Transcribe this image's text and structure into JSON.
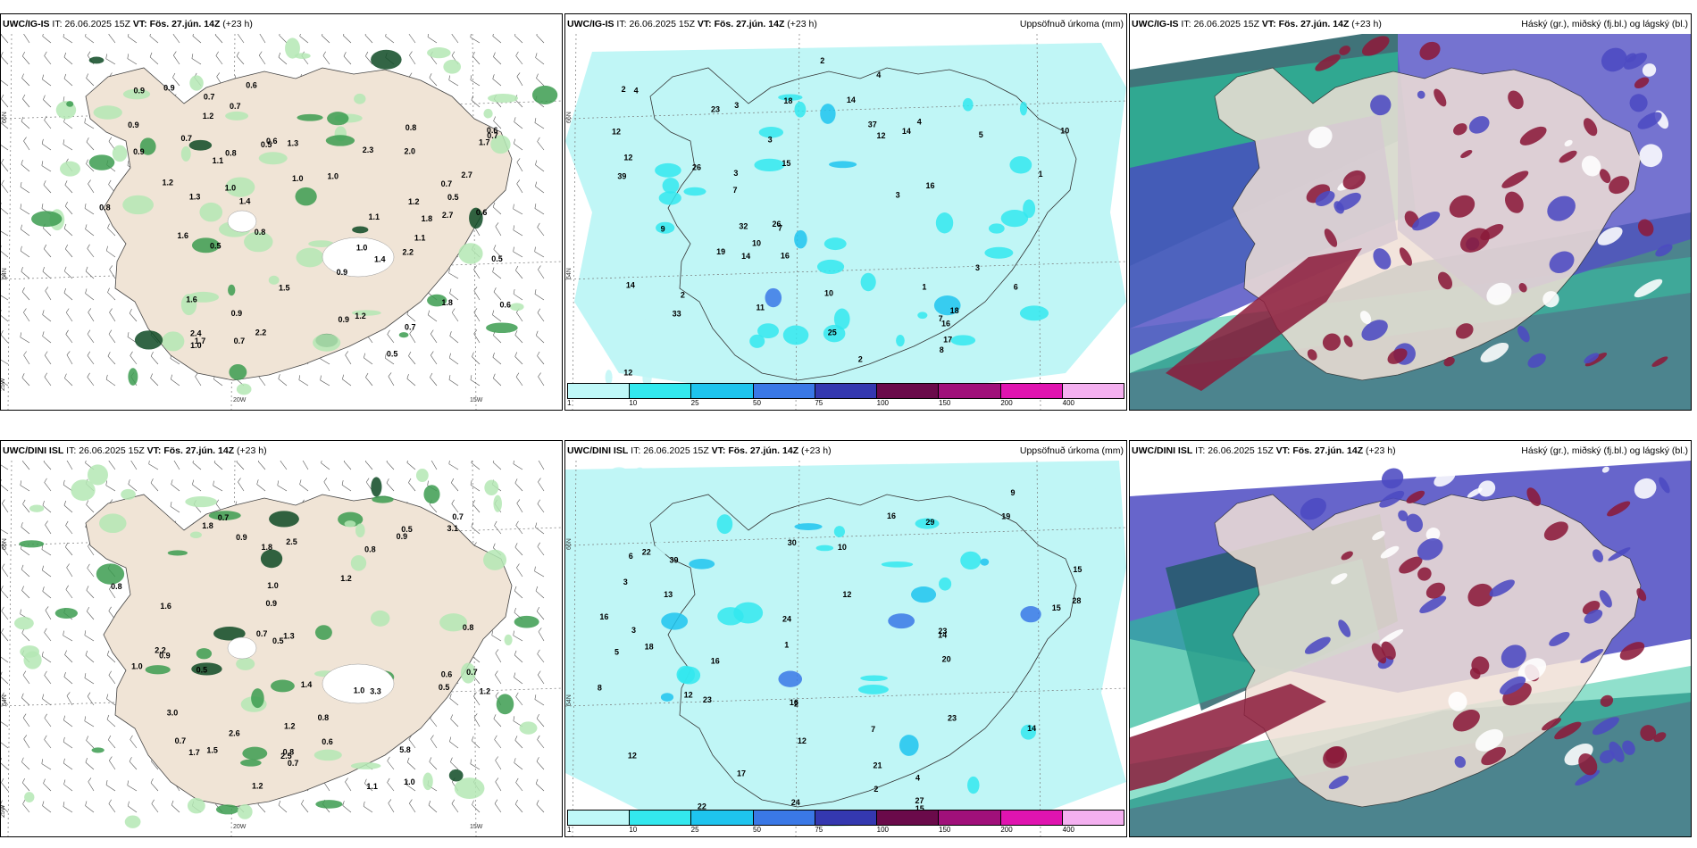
{
  "panels": [
    {
      "model": "UWC/IG-IS",
      "it_label": "IT:",
      "it_value": "26.06.2025 15Z",
      "vt_label": "VT:",
      "vt_value": "Fös. 27.jún. 14Z",
      "lead": "(+23 h)",
      "right_title": "",
      "kind": "wind-precip",
      "grid_labels": [
        "66N",
        "64N",
        "25W",
        "20W",
        "15W"
      ],
      "values": [
        "0.6",
        "0.6",
        "0.7",
        "0.9",
        "0.8",
        "1.0",
        "1.1",
        "2.4",
        "2.0",
        "0.5",
        "1.2",
        "0.7",
        "1.5",
        "0.5",
        "1.3",
        "0.9",
        "1.1",
        "2.2",
        "0.7",
        "1.7",
        "0.7",
        "1.7",
        "0.5",
        "0.9",
        "1.2",
        "0.7",
        "1.2",
        "0.5",
        "1.3",
        "0.9",
        "0.5",
        "0.7",
        "0.9",
        "1.0",
        "0.7",
        "2.3",
        "2.2",
        "1.8",
        "1.0",
        "0.8",
        "2.7",
        "0.9",
        "1.4",
        "1.4",
        "1.0",
        "0.6",
        "0.9",
        "1.6",
        "0.8",
        "0.6",
        "1.1",
        "1.2",
        "0.6",
        "0.8",
        "2.7",
        "1.0",
        "1.6",
        "1.8"
      ]
    },
    {
      "model": "UWC/IG-IS",
      "it_label": "IT:",
      "it_value": "26.06.2025 15Z",
      "vt_label": "VT:",
      "vt_value": "Fös. 27.jún. 14Z",
      "lead": "(+23 h)",
      "right_title": "Uppsöfnuð úrkoma (mm)",
      "kind": "accum-precip",
      "grid_labels": [
        "66N",
        "64N"
      ],
      "values": [
        "4",
        "2",
        "3",
        "3",
        "2",
        "1",
        "3",
        "10",
        "7",
        "3",
        "4",
        "18",
        "7",
        "19",
        "12",
        "33",
        "32",
        "14",
        "39",
        "37",
        "12",
        "16",
        "19",
        "18",
        "25",
        "12",
        "26",
        "16",
        "10",
        "11",
        "14",
        "15",
        "14",
        "16",
        "17",
        "12",
        "26",
        "23",
        "14",
        "9",
        "10",
        "5",
        "6",
        "7",
        "8",
        "4",
        "2",
        "3",
        "1",
        "2"
      ],
      "colorbar": {
        "labels": [
          "1",
          "10",
          "25",
          "50",
          "75",
          "100",
          "150",
          "200",
          "400"
        ],
        "colors": [
          "#bff8f8",
          "#33e8ee",
          "#1ec4ee",
          "#3a78e6",
          "#3438b0",
          "#6a0a4a",
          "#a0107a",
          "#e014b0",
          "#f4b0f0"
        ]
      }
    },
    {
      "model": "UWC/IG-IS",
      "it_label": "IT:",
      "it_value": "26.06.2025 15Z",
      "vt_label": "VT:",
      "vt_value": "Fös. 27.jún. 14Z",
      "lead": "(+23 h)",
      "right_title": "Háský (gr.), miðský (fj.bl.) og lágský (bl.)",
      "kind": "cloud"
    },
    {
      "model": "UWC/DINI ISL",
      "it_label": "IT:",
      "it_value": "26.06.2025 15Z",
      "vt_label": "VT:",
      "vt_value": "Fös. 27.jún. 14Z",
      "lead": "(+23 h)",
      "right_title": "",
      "kind": "wind-precip",
      "grid_labels": [
        "66N",
        "64N",
        "25W",
        "20W",
        "15W"
      ],
      "values": [
        "0.7",
        "3.3",
        "0.7",
        "1.2",
        "0.5",
        "3.0",
        "1.0",
        "1.0",
        "0.9",
        "2.6",
        "1.2",
        "2.2",
        "0.7",
        "0.5",
        "0.9",
        "1.1",
        "0.8",
        "1.2",
        "0.5",
        "1.8",
        "3.1",
        "1.0",
        "2.5",
        "0.8",
        "0.9",
        "0.6",
        "2.5",
        "5.8",
        "1.6",
        "0.8",
        "1.3",
        "1.8",
        "1.5",
        "1.2",
        "1.0",
        "0.5",
        "0.7",
        "0.6",
        "0.7",
        "0.8",
        "0.9",
        "1.4",
        "0.7",
        "0.8",
        "1.7"
      ]
    },
    {
      "model": "UWC/DINI ISL",
      "it_label": "IT:",
      "it_value": "26.06.2025 15Z",
      "vt_label": "VT:",
      "vt_value": "Fös. 27.jún. 14Z",
      "lead": "(+23 h)",
      "right_title": "Uppsöfnuð úrkoma (mm)",
      "kind": "accum-precip",
      "grid_labels": [
        "66N",
        "64N"
      ],
      "values": [
        "2",
        "3",
        "16",
        "15",
        "15",
        "16",
        "14",
        "30",
        "28",
        "16",
        "20",
        "21",
        "12",
        "23",
        "39",
        "29",
        "17",
        "12",
        "23",
        "16",
        "27",
        "19",
        "24",
        "22",
        "24",
        "18",
        "22",
        "23",
        "14",
        "15",
        "13",
        "10",
        "12",
        "8",
        "9",
        "5",
        "4",
        "3",
        "2",
        "1",
        "12",
        "6",
        "7"
      ],
      "colorbar": {
        "labels": [
          "1",
          "10",
          "25",
          "50",
          "75",
          "100",
          "150",
          "200",
          "400"
        ],
        "colors": [
          "#bff8f8",
          "#33e8ee",
          "#1ec4ee",
          "#3a78e6",
          "#3438b0",
          "#6a0a4a",
          "#a0107a",
          "#e014b0",
          "#f4b0f0"
        ]
      }
    },
    {
      "model": "UWC/DINI ISL",
      "it_label": "IT:",
      "it_value": "26.06.2025 15Z",
      "vt_label": "VT:",
      "vt_value": "Fös. 27.jún. 14Z",
      "lead": "(+23 h)",
      "right_title": "Háský (gr.), miðský (fj.bl.) og lágský (bl.)",
      "kind": "cloud"
    }
  ]
}
